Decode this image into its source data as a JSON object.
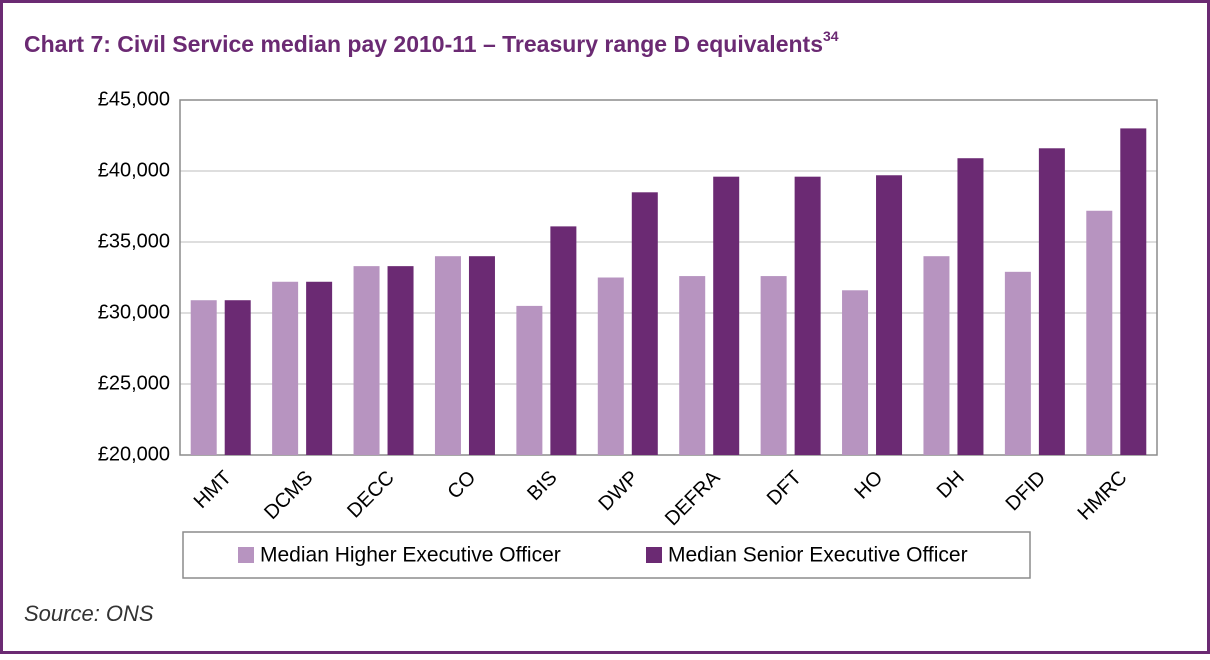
{
  "chart_data": {
    "type": "bar",
    "title": "Chart 7: Civil Service median pay 2010-11 – Treasury range D equivalents",
    "title_footnote": "34",
    "source": "Source: ONS",
    "categories": [
      "HMT",
      "DCMS",
      "DECC",
      "CO",
      "BIS",
      "DWP",
      "DEFRA",
      "DFT",
      "HO",
      "DH",
      "DFID",
      "HMRC"
    ],
    "series": [
      {
        "name": "Median Higher Executive Officer",
        "color": "#b794c0",
        "values": [
          30900,
          32200,
          33300,
          34000,
          30500,
          32500,
          32600,
          32600,
          31600,
          34000,
          32900,
          37200
        ]
      },
      {
        "name": "Median Senior Executive Officer",
        "color": "#6b2a73",
        "values": [
          30900,
          32200,
          33300,
          34000,
          36100,
          38500,
          39600,
          39600,
          39700,
          40900,
          41600,
          43000
        ]
      }
    ],
    "ylim": [
      20000,
      45000
    ],
    "yticks": [
      {
        "value": 20000,
        "label": "£20,000"
      },
      {
        "value": 25000,
        "label": "£25,000"
      },
      {
        "value": 30000,
        "label": "£30,000"
      },
      {
        "value": 35000,
        "label": "£35,000"
      },
      {
        "value": 40000,
        "label": "£40,000"
      },
      {
        "value": 45000,
        "label": "£45,000"
      }
    ],
    "grid": true,
    "legend": "bottom"
  }
}
